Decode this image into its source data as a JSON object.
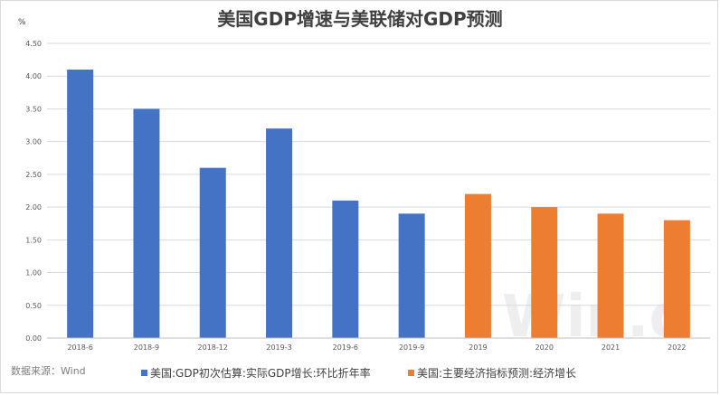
{
  "chart_data": {
    "type": "bar",
    "title": "美国GDP增速与美联储对GDP预测",
    "ylabel": "%",
    "ylim": [
      0,
      4.5
    ],
    "yticks": [
      "0.00",
      "0.50",
      "1.00",
      "1.50",
      "2.00",
      "2.50",
      "3.00",
      "3.50",
      "4.00",
      "4.50"
    ],
    "grid": true,
    "legend_position": "bottom",
    "categories": [
      "2018-6",
      "2018-9",
      "2018-12",
      "2019-3",
      "2019-6",
      "2019-9",
      "2019",
      "2020",
      "2021",
      "2022"
    ],
    "series": [
      {
        "name": "美国:GDP初次估算:实际GDP增长:环比折年率",
        "color": "#4472c4",
        "values": [
          4.1,
          3.5,
          2.6,
          3.2,
          2.1,
          1.9,
          null,
          null,
          null,
          null
        ]
      },
      {
        "name": "美国:主要经济指标预测:经济增长",
        "color": "#ed7d31",
        "values": [
          null,
          null,
          null,
          null,
          null,
          null,
          2.2,
          2.0,
          1.9,
          1.8
        ]
      }
    ]
  },
  "source": "数据来源：Wind",
  "watermark": "Win.d"
}
